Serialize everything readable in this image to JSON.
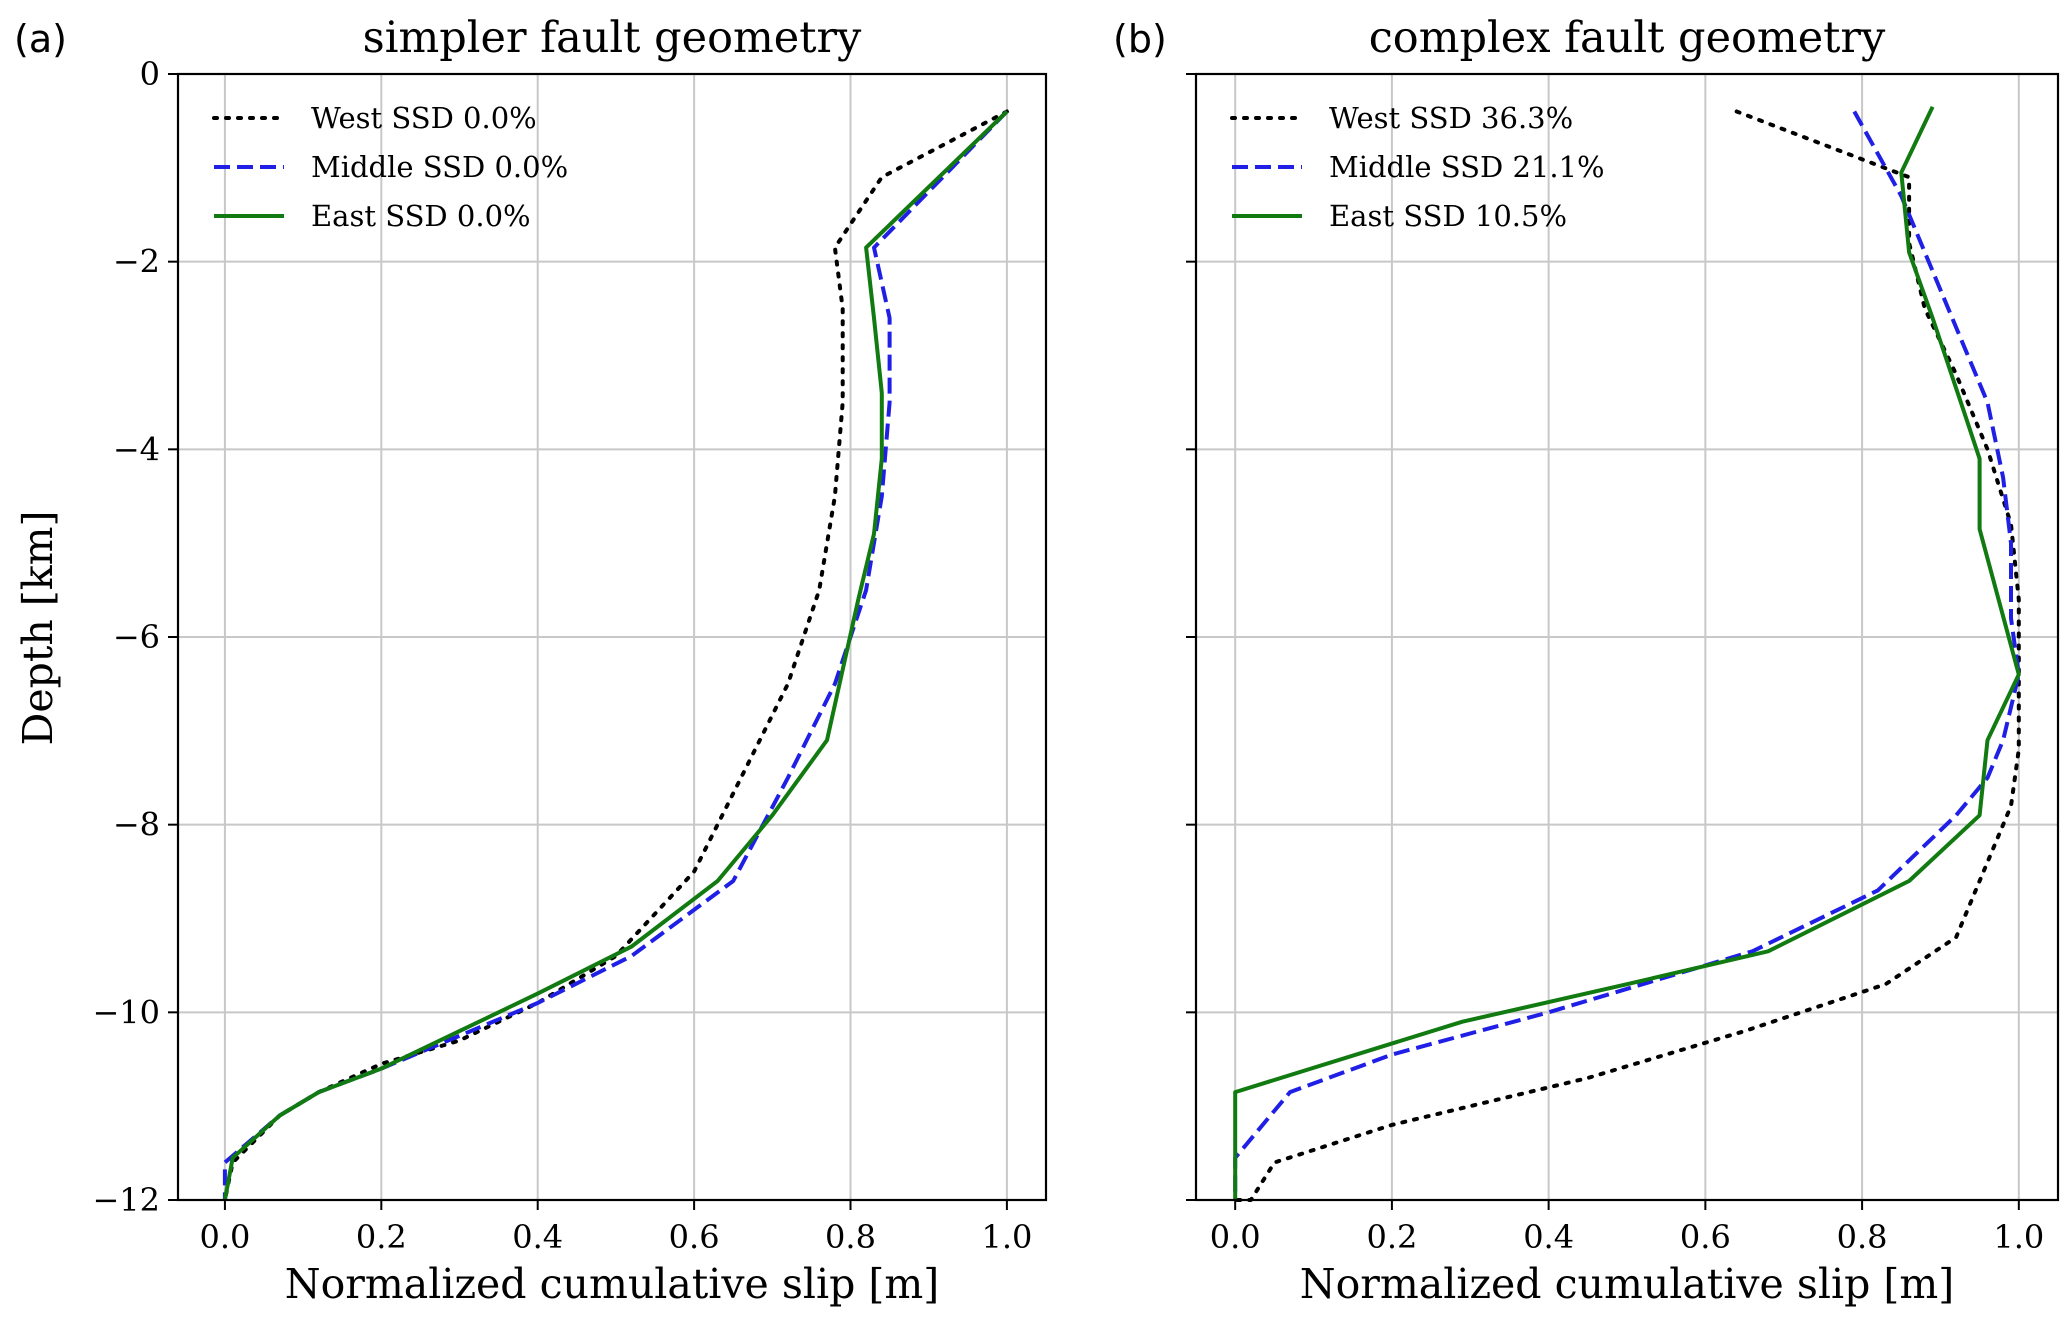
{
  "figure": {
    "ylabel": "Depth [km]",
    "colors": {
      "West": "#000000",
      "Middle": "#1f1fe6",
      "East": "#117a11"
    }
  },
  "chart_data": [
    {
      "type": "line",
      "panel_label": "(a)",
      "title": "simpler fault geometry",
      "xlabel": "Normalized cumulative slip [m]",
      "ylabel": "Depth [km]",
      "xlim": [
        -0.06,
        1.05
      ],
      "ylim": [
        -12,
        0
      ],
      "xticks": [
        0.0,
        0.2,
        0.4,
        0.6,
        0.8,
        1.0
      ],
      "xtick_labels": [
        "0.0",
        "0.2",
        "0.4",
        "0.6",
        "0.8",
        "1.0"
      ],
      "yticks": [
        0,
        -2,
        -4,
        -6,
        -8,
        -10,
        -12
      ],
      "ytick_labels": [
        "0",
        "−2",
        "−4",
        "−6",
        "−8",
        "−10",
        "−12"
      ],
      "grid": true,
      "legend_position": "top-left",
      "series": [
        {
          "name": "West",
          "legend": "West SSD 0.0%",
          "style": "dotted",
          "x": [
            1.0,
            0.84,
            0.78,
            0.79,
            0.79,
            0.78,
            0.76,
            0.72,
            0.66,
            0.6,
            0.5,
            0.4,
            0.3,
            0.2,
            0.12,
            0.07,
            0.01,
            0.0
          ],
          "y": [
            -0.4,
            -1.1,
            -1.85,
            -2.5,
            -3.5,
            -4.5,
            -5.5,
            -6.5,
            -7.5,
            -8.5,
            -9.4,
            -9.9,
            -10.3,
            -10.55,
            -10.85,
            -11.1,
            -11.6,
            -12.0
          ]
        },
        {
          "name": "Middle",
          "legend": "Middle SSD 0.0%",
          "style": "dashed",
          "x": [
            1.0,
            0.83,
            0.85,
            0.85,
            0.84,
            0.82,
            0.78,
            0.72,
            0.65,
            0.52,
            0.4,
            0.3,
            0.2,
            0.12,
            0.07,
            0.0,
            0.0
          ],
          "y": [
            -0.4,
            -1.85,
            -2.6,
            -3.5,
            -4.5,
            -5.5,
            -6.5,
            -7.5,
            -8.6,
            -9.4,
            -9.9,
            -10.25,
            -10.6,
            -10.85,
            -11.1,
            -11.6,
            -12.0
          ]
        },
        {
          "name": "East",
          "legend": "East SSD 0.0%",
          "style": "solid",
          "x": [
            1.0,
            0.82,
            0.83,
            0.84,
            0.84,
            0.83,
            0.81,
            0.77,
            0.7,
            0.63,
            0.52,
            0.4,
            0.3,
            0.2,
            0.12,
            0.07,
            0.01,
            0.0
          ],
          "y": [
            -0.4,
            -1.85,
            -2.6,
            -3.4,
            -4.1,
            -4.9,
            -5.6,
            -7.1,
            -7.9,
            -8.6,
            -9.3,
            -9.8,
            -10.2,
            -10.6,
            -10.85,
            -11.1,
            -11.55,
            -12.0
          ]
        }
      ]
    },
    {
      "type": "line",
      "panel_label": "(b)",
      "title": "complex fault geometry",
      "xlabel": "Normalized cumulative slip [m]",
      "ylabel": "",
      "xlim": [
        -0.05,
        1.05
      ],
      "ylim": [
        -12,
        0
      ],
      "xticks": [
        0.0,
        0.2,
        0.4,
        0.6,
        0.8,
        1.0
      ],
      "xtick_labels": [
        "0.0",
        "0.2",
        "0.4",
        "0.6",
        "0.8",
        "1.0"
      ],
      "yticks": [
        0,
        -2,
        -4,
        -6,
        -8,
        -10,
        -12
      ],
      "grid": true,
      "legend_position": "top-left",
      "series": [
        {
          "name": "West",
          "legend": "West SSD 36.3%",
          "style": "dotted",
          "x": [
            0.64,
            0.86,
            0.86,
            0.88,
            0.92,
            0.96,
            0.99,
            1.0,
            1.0,
            1.0,
            0.99,
            0.95,
            0.92,
            0.83,
            0.65,
            0.45,
            0.2,
            0.05,
            0.02,
            0.0
          ],
          "y": [
            -0.4,
            -1.1,
            -1.8,
            -2.5,
            -3.2,
            -4.0,
            -4.8,
            -5.6,
            -6.4,
            -7.2,
            -7.8,
            -8.6,
            -9.2,
            -9.7,
            -10.2,
            -10.7,
            -11.2,
            -11.6,
            -12.0,
            -12.0
          ]
        },
        {
          "name": "Middle",
          "legend": "Middle SSD 21.1%",
          "style": "dashed",
          "x": [
            0.79,
            0.85,
            0.88,
            0.92,
            0.96,
            0.98,
            0.99,
            0.99,
            1.0,
            0.98,
            0.96,
            0.92,
            0.82,
            0.66,
            0.52,
            0.4,
            0.2,
            0.07,
            0.0,
            0.0
          ],
          "y": [
            -0.4,
            -1.3,
            -1.9,
            -2.7,
            -3.5,
            -4.3,
            -5.0,
            -5.8,
            -6.4,
            -7.1,
            -7.5,
            -7.9,
            -8.7,
            -9.35,
            -9.7,
            -10.0,
            -10.45,
            -10.85,
            -11.55,
            -12.0
          ]
        },
        {
          "name": "East",
          "legend": "East SSD 10.5%",
          "style": "solid",
          "x": [
            0.89,
            0.85,
            0.86,
            0.89,
            0.93,
            0.95,
            0.95,
            1.0,
            0.96,
            0.95,
            0.86,
            0.68,
            0.5,
            0.29,
            0.0,
            0.0
          ],
          "y": [
            -0.35,
            -1.05,
            -1.9,
            -2.6,
            -3.6,
            -4.1,
            -4.85,
            -6.4,
            -7.1,
            -7.9,
            -8.6,
            -9.35,
            -9.7,
            -10.1,
            -10.85,
            -12.0
          ]
        }
      ]
    }
  ]
}
